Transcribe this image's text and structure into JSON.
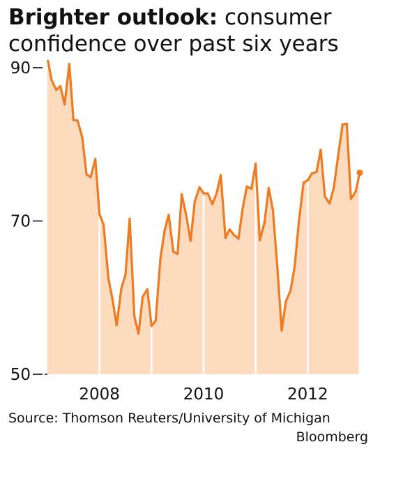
{
  "title": {
    "bold": "Brighter outlook:",
    "rest": " consumer confidence over past six years"
  },
  "source": {
    "text": "Source: Thomson Reuters/University of Michigan",
    "credit": "Bloomberg"
  },
  "colors": {
    "line": "#ee7a22",
    "area": "#fcdbbe",
    "year_divider": "#ffffff",
    "axis": "#111111"
  },
  "chart_data": {
    "type": "area",
    "title": "Brighter outlook: consumer confidence over past six years",
    "xlabel": "",
    "ylabel": "",
    "ylim": [
      50,
      91
    ],
    "xlim": [
      2007.0,
      2013.0
    ],
    "yticks": [
      90,
      70,
      50
    ],
    "ytick_labels": [
      "90",
      "70",
      "50"
    ],
    "xtick_labels": [
      {
        "label": "2008",
        "year": 2008
      },
      {
        "label": "2010",
        "year": 2010
      },
      {
        "label": "2012",
        "year": 2012
      }
    ],
    "year_dividers": [
      2008,
      2009,
      2010,
      2011,
      2012,
      2013
    ],
    "grid": false,
    "legend": "none",
    "series": [
      {
        "values": [
          {
            "x": 2007.0,
            "y": 91.3
          },
          {
            "x": 2007.08,
            "y": 88.4
          },
          {
            "x": 2007.17,
            "y": 87.1
          },
          {
            "x": 2007.25,
            "y": 87.6
          },
          {
            "x": 2007.33,
            "y": 85.2
          },
          {
            "x": 2007.42,
            "y": 90.5
          },
          {
            "x": 2007.5,
            "y": 83.2
          },
          {
            "x": 2007.58,
            "y": 83.1
          },
          {
            "x": 2007.67,
            "y": 80.9
          },
          {
            "x": 2007.75,
            "y": 76.1
          },
          {
            "x": 2007.83,
            "y": 75.7
          },
          {
            "x": 2007.92,
            "y": 78.1
          },
          {
            "x": 2008.0,
            "y": 70.9
          },
          {
            "x": 2008.08,
            "y": 69.5
          },
          {
            "x": 2008.17,
            "y": 62.6
          },
          {
            "x": 2008.25,
            "y": 59.8
          },
          {
            "x": 2008.33,
            "y": 56.4
          },
          {
            "x": 2008.42,
            "y": 61.2
          },
          {
            "x": 2008.5,
            "y": 63.0
          },
          {
            "x": 2008.58,
            "y": 70.3
          },
          {
            "x": 2008.67,
            "y": 57.6
          },
          {
            "x": 2008.75,
            "y": 55.3
          },
          {
            "x": 2008.83,
            "y": 60.1
          },
          {
            "x": 2008.92,
            "y": 61.1
          },
          {
            "x": 2009.0,
            "y": 56.3
          },
          {
            "x": 2009.08,
            "y": 57.0
          },
          {
            "x": 2009.17,
            "y": 65.1
          },
          {
            "x": 2009.25,
            "y": 68.7
          },
          {
            "x": 2009.33,
            "y": 70.8
          },
          {
            "x": 2009.42,
            "y": 66.0
          },
          {
            "x": 2009.5,
            "y": 65.7
          },
          {
            "x": 2009.58,
            "y": 73.5
          },
          {
            "x": 2009.67,
            "y": 70.6
          },
          {
            "x": 2009.75,
            "y": 67.4
          },
          {
            "x": 2009.83,
            "y": 72.5
          },
          {
            "x": 2009.92,
            "y": 74.4
          },
          {
            "x": 2010.0,
            "y": 73.6
          },
          {
            "x": 2010.08,
            "y": 73.6
          },
          {
            "x": 2010.17,
            "y": 72.2
          },
          {
            "x": 2010.25,
            "y": 73.6
          },
          {
            "x": 2010.33,
            "y": 76.0
          },
          {
            "x": 2010.42,
            "y": 67.8
          },
          {
            "x": 2010.5,
            "y": 68.9
          },
          {
            "x": 2010.58,
            "y": 68.2
          },
          {
            "x": 2010.67,
            "y": 67.7
          },
          {
            "x": 2010.75,
            "y": 71.6
          },
          {
            "x": 2010.83,
            "y": 74.5
          },
          {
            "x": 2010.92,
            "y": 74.2
          },
          {
            "x": 2011.0,
            "y": 77.5
          },
          {
            "x": 2011.08,
            "y": 67.5
          },
          {
            "x": 2011.17,
            "y": 69.8
          },
          {
            "x": 2011.25,
            "y": 74.3
          },
          {
            "x": 2011.33,
            "y": 71.5
          },
          {
            "x": 2011.42,
            "y": 63.7
          },
          {
            "x": 2011.5,
            "y": 55.7
          },
          {
            "x": 2011.58,
            "y": 59.5
          },
          {
            "x": 2011.67,
            "y": 60.9
          },
          {
            "x": 2011.75,
            "y": 64.1
          },
          {
            "x": 2011.83,
            "y": 69.9
          },
          {
            "x": 2011.92,
            "y": 75.0
          },
          {
            "x": 2012.0,
            "y": 75.3
          },
          {
            "x": 2012.08,
            "y": 76.2
          },
          {
            "x": 2012.17,
            "y": 76.4
          },
          {
            "x": 2012.25,
            "y": 79.3
          },
          {
            "x": 2012.33,
            "y": 73.2
          },
          {
            "x": 2012.42,
            "y": 72.3
          },
          {
            "x": 2012.5,
            "y": 74.3
          },
          {
            "x": 2012.58,
            "y": 78.3
          },
          {
            "x": 2012.67,
            "y": 82.6
          },
          {
            "x": 2012.75,
            "y": 82.7
          },
          {
            "x": 2012.83,
            "y": 72.9
          },
          {
            "x": 2012.92,
            "y": 73.8
          },
          {
            "x": 2013.0,
            "y": 76.3
          }
        ]
      }
    ],
    "highlight_last_point": true
  }
}
